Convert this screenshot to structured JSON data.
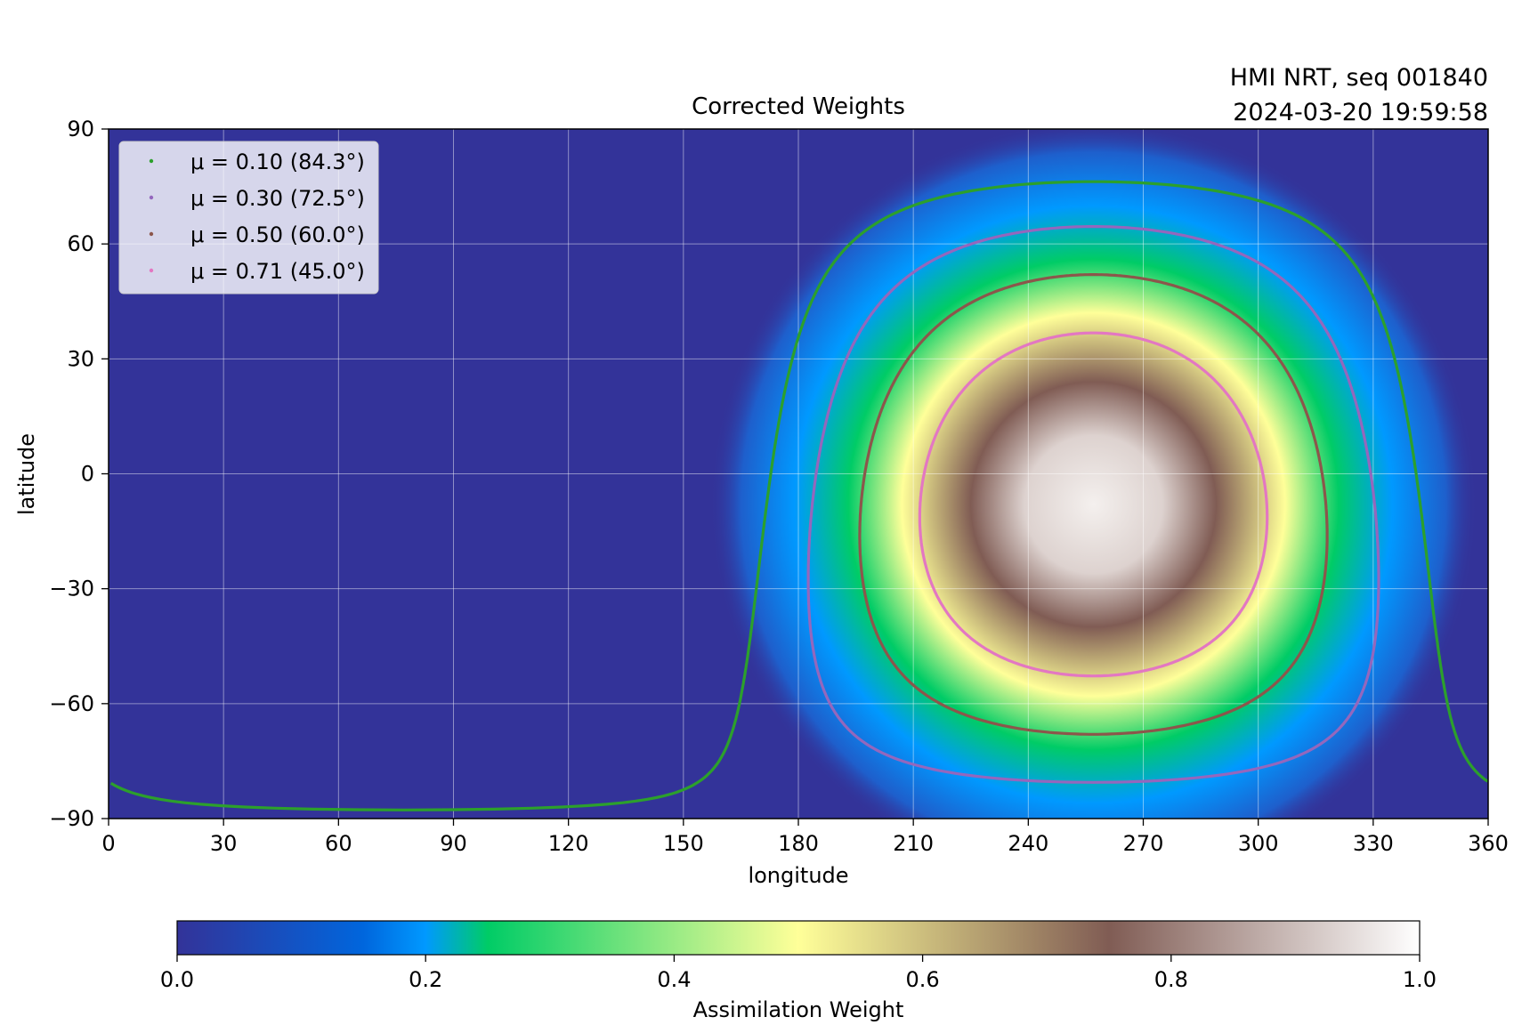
{
  "figure": {
    "title": "Corrected Weights",
    "info_line1": "HMI NRT, seq 001840",
    "info_line2": "2024-03-20 19:59:58"
  },
  "chart_data": {
    "type": "heatmap",
    "title": "Corrected Weights",
    "xlabel": "longitude",
    "ylabel": "latitude",
    "xlim": [
      0,
      360
    ],
    "ylim": [
      -90,
      90
    ],
    "xticks": [
      0,
      30,
      60,
      90,
      120,
      150,
      180,
      210,
      240,
      270,
      300,
      330,
      360
    ],
    "yticks": [
      -90,
      -60,
      -30,
      0,
      30,
      60,
      90
    ],
    "ytick_labels": [
      "−90",
      "−60",
      "−30",
      "0",
      "30",
      "60",
      "90"
    ],
    "grid": true,
    "legend_placement": "top-left",
    "heatmap": {
      "description_center": {
        "lon": 257,
        "lat": -8
      },
      "peak_value": 1.0,
      "background_value": 0.0
    },
    "series": [
      {
        "name": "μ = 0.10 (84.3°)",
        "mu": 0.1,
        "color": "#2ca02c"
      },
      {
        "name": "μ = 0.30 (72.5°)",
        "mu": 0.3,
        "color": "#9467bd"
      },
      {
        "name": "μ = 0.50 (60.0°)",
        "mu": 0.5,
        "color": "#8c564b"
      },
      {
        "name": "μ = 0.71 (45.0°)",
        "mu": 0.71,
        "color": "#e377c2"
      }
    ],
    "colorbar": {
      "label": "Assimilation Weight",
      "ticks": [
        0.0,
        0.2,
        0.4,
        0.6,
        0.8,
        1.0
      ],
      "tick_labels": [
        "0.0",
        "0.2",
        "0.4",
        "0.6",
        "0.8",
        "1.0"
      ],
      "colormap": "terrain",
      "stops": [
        "#333399",
        "#0099ff",
        "#00cc66",
        "#ffff99",
        "#805c54",
        "#ffffff"
      ]
    }
  }
}
